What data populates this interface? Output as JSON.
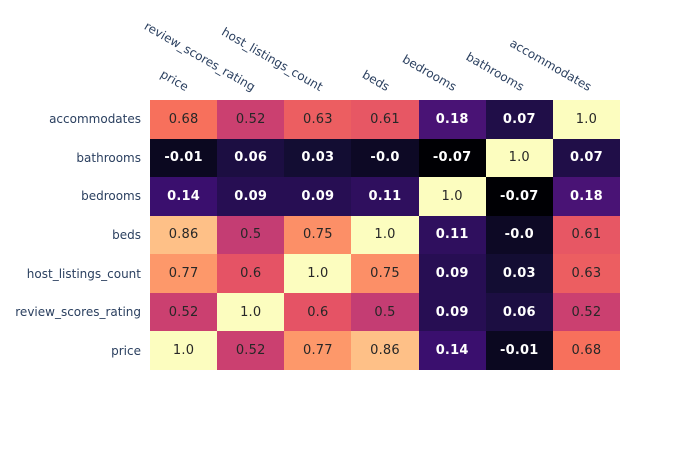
{
  "figure": {
    "kind": "correlation-heatmap",
    "background_color": "#ffffff",
    "axis_label_color": "#2a3f5f",
    "cell_text_dark_color": "#272727",
    "cell_text_light_color": "#ffffff"
  },
  "chart_data": {
    "type": "heatmap",
    "x_categories": [
      "price",
      "review_scores_rating",
      "host_listings_count",
      "beds",
      "bedrooms",
      "bathrooms",
      "accommodates"
    ],
    "y_categories": [
      "accommodates",
      "bathrooms",
      "bedrooms",
      "beds",
      "host_listings_count",
      "review_scores_rating",
      "price"
    ],
    "z": [
      [
        0.68,
        0.52,
        0.63,
        0.61,
        0.18,
        0.07,
        1.0
      ],
      [
        -0.01,
        0.06,
        0.03,
        -0.0,
        -0.07,
        1.0,
        0.07
      ],
      [
        0.14,
        0.09,
        0.09,
        0.11,
        1.0,
        -0.07,
        0.18
      ],
      [
        0.86,
        0.5,
        0.75,
        1.0,
        0.11,
        -0.0,
        0.61
      ],
      [
        0.77,
        0.6,
        1.0,
        0.75,
        0.09,
        0.03,
        0.63
      ],
      [
        0.52,
        1.0,
        0.6,
        0.5,
        0.09,
        0.06,
        0.52
      ],
      [
        1.0,
        0.52,
        0.77,
        0.86,
        0.14,
        -0.01,
        0.68
      ]
    ],
    "z_text": [
      [
        "0.68",
        "0.52",
        "0.63",
        "0.61",
        "0.18",
        "0.07",
        "1.0"
      ],
      [
        "-0.01",
        "0.06",
        "0.03",
        "-0.0",
        "-0.07",
        "1.0",
        "0.07"
      ],
      [
        "0.14",
        "0.09",
        "0.09",
        "0.11",
        "1.0",
        "-0.07",
        "0.18"
      ],
      [
        "0.86",
        "0.5",
        "0.75",
        "1.0",
        "0.11",
        "-0.0",
        "0.61"
      ],
      [
        "0.77",
        "0.6",
        "1.0",
        "0.75",
        "0.09",
        "0.03",
        "0.63"
      ],
      [
        "0.52",
        "1.0",
        "0.6",
        "0.5",
        "0.09",
        "0.06",
        "0.52"
      ],
      [
        "1.0",
        "0.52",
        "0.77",
        "0.86",
        "0.14",
        "-0.01",
        "0.68"
      ]
    ],
    "zmin": -0.07,
    "zmax": 1.0,
    "x_tick_angle_deg": 30,
    "grid": "off",
    "legend": "none",
    "colorbar": "none",
    "colorscale_name": "magma",
    "colorscale": [
      [
        0.0,
        "#000004"
      ],
      [
        0.1,
        "#140e36"
      ],
      [
        0.2,
        "#3b0f70"
      ],
      [
        0.3,
        "#641a80"
      ],
      [
        0.4,
        "#8c2981"
      ],
      [
        0.5,
        "#b73779"
      ],
      [
        0.6,
        "#de4968"
      ],
      [
        0.7,
        "#f7705c"
      ],
      [
        0.8,
        "#fe9f6d"
      ],
      [
        0.9,
        "#fecf92"
      ],
      [
        1.0,
        "#fcfdbf"
      ]
    ],
    "text_contrast_threshold": 0.45
  }
}
